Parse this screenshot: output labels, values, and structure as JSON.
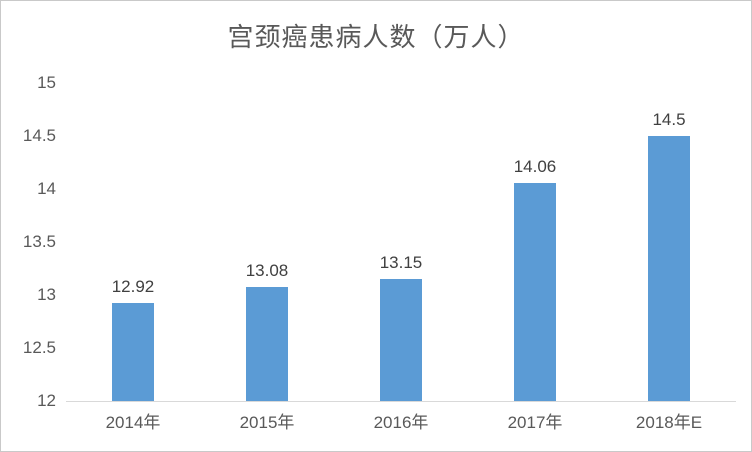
{
  "chart_data": {
    "type": "bar",
    "title": "宫颈癌患病人数（万人）",
    "categories": [
      "2014年",
      "2015年",
      "2016年",
      "2017年",
      "2018年E"
    ],
    "values": [
      12.92,
      13.08,
      13.15,
      14.06,
      14.5
    ],
    "value_labels": [
      "12.92",
      "13.08",
      "13.15",
      "14.06",
      "14.5"
    ],
    "series": [
      {
        "name": "宫颈癌患病人数",
        "values": [
          12.92,
          13.08,
          13.15,
          14.06,
          14.5
        ]
      }
    ],
    "xlabel": "",
    "ylabel": "",
    "ylim": [
      12,
      15
    ],
    "ytick_step": 0.5,
    "yticks": [
      {
        "value": 15,
        "label": "15"
      },
      {
        "value": 14.5,
        "label": "14.5"
      },
      {
        "value": 14,
        "label": "14"
      },
      {
        "value": 13.5,
        "label": "13.5"
      },
      {
        "value": 13,
        "label": "13"
      },
      {
        "value": 12.5,
        "label": "12.5"
      },
      {
        "value": 12,
        "label": "12"
      }
    ],
    "grid": false,
    "legend": false,
    "data_labels_shown": true,
    "colors": {
      "bar": "#5B9BD5",
      "axis_line": "#D9D9D9",
      "tick_text": "#595959",
      "data_label_text": "#404040",
      "title_text": "#595959",
      "frame_border": "#C9C9C9",
      "background": "#FFFFFF"
    }
  }
}
